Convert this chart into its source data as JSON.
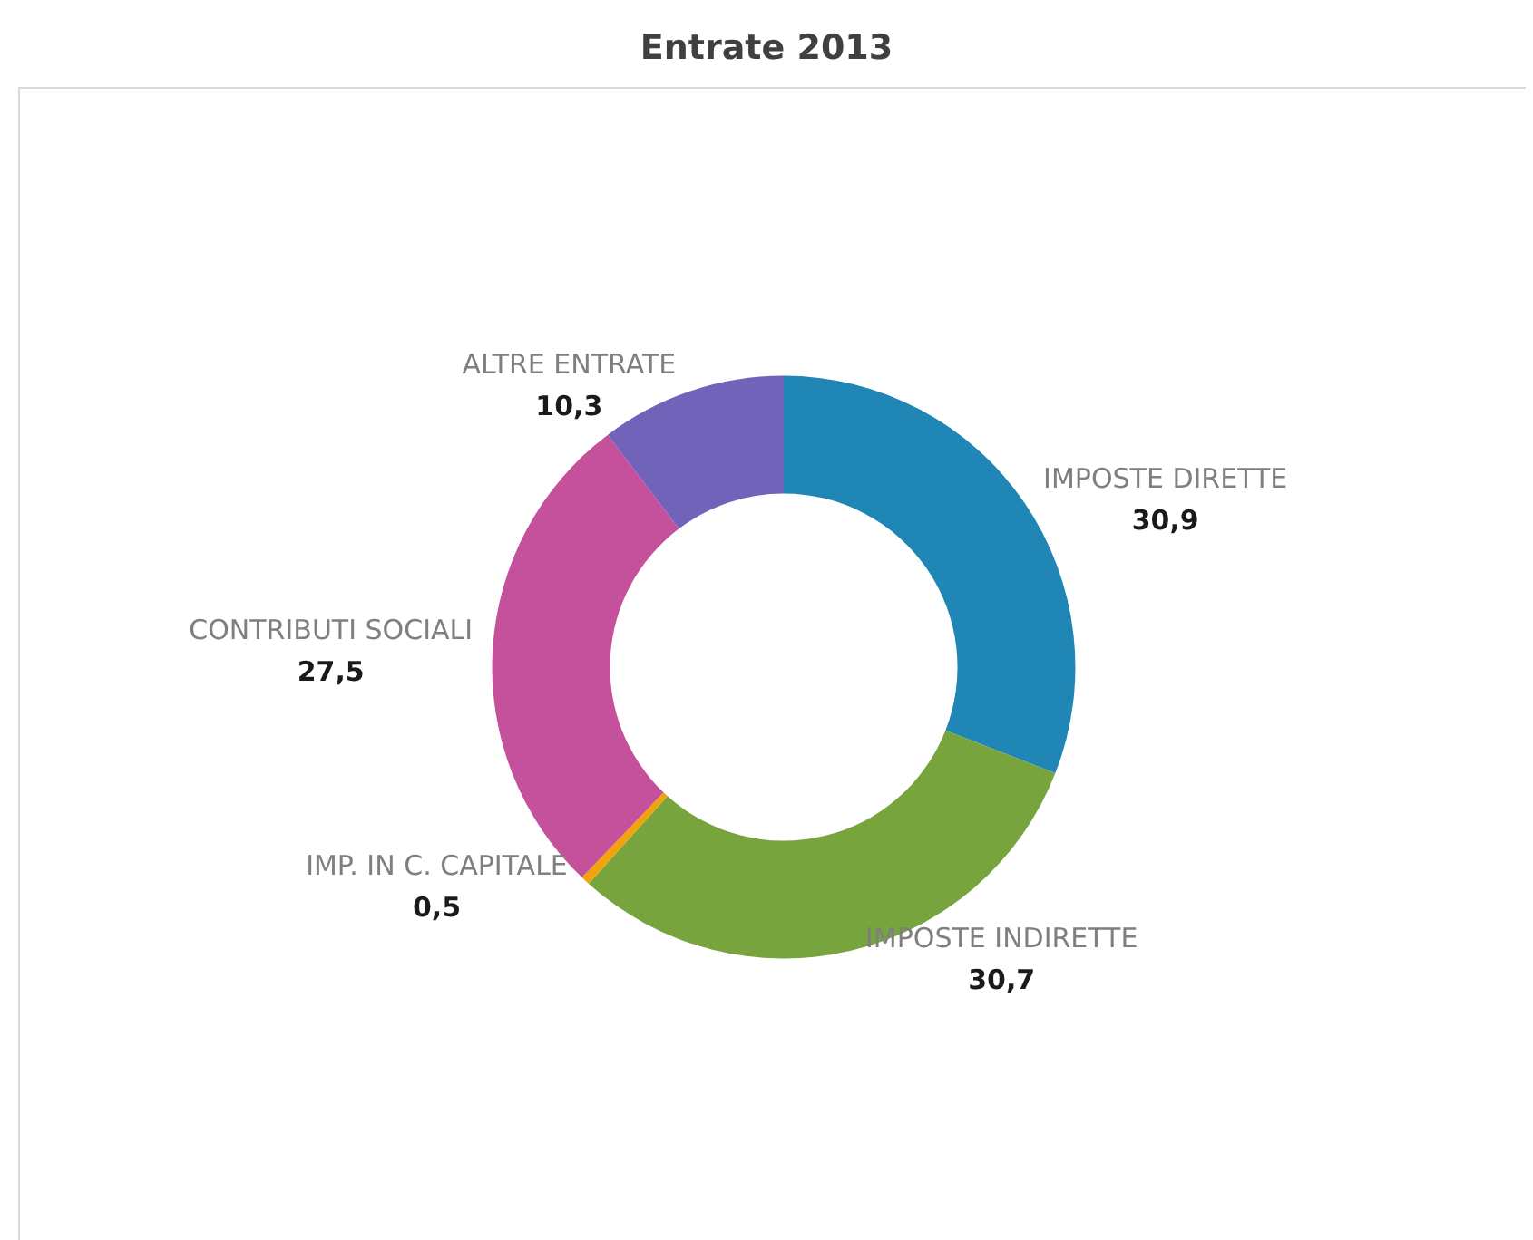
{
  "chart_data": {
    "type": "donut",
    "title": "Entrate 2013",
    "categories": [
      "IMPOSTE DIRETTE",
      "IMPOSTE INDIRETTE",
      "IMP. IN C. CAPITALE",
      "CONTRIBUTI SOCIALI",
      "ALTRE ENTRATE"
    ],
    "values": [
      30.9,
      30.7,
      0.5,
      27.5,
      10.3
    ],
    "value_labels": [
      "30,9",
      "30,7",
      "0,5",
      "27,5",
      "10,3"
    ],
    "colors": [
      "#1f86b5",
      "#77a43c",
      "#f0a30a",
      "#c5509b",
      "#7163ba"
    ]
  }
}
